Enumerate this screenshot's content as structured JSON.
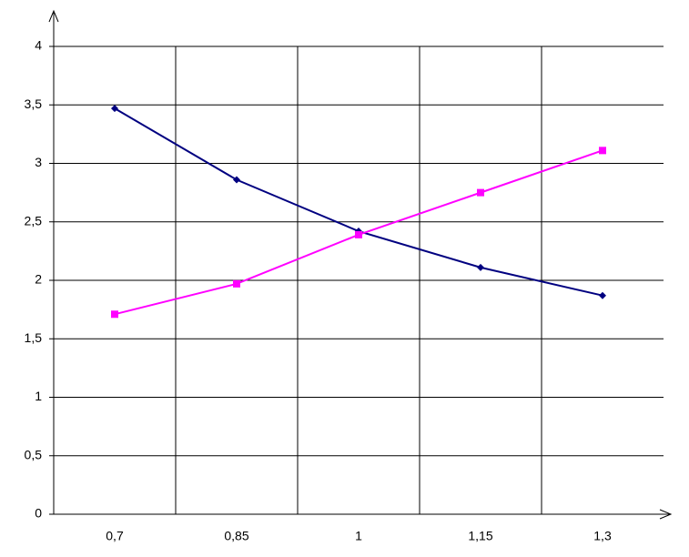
{
  "chart_data": {
    "type": "line",
    "categories": [
      "0,7",
      "0,85",
      "1",
      "1,15",
      "1,3"
    ],
    "series": [
      {
        "color": "#000080",
        "marker": "diamond",
        "values": [
          3.47,
          2.86,
          2.42,
          2.11,
          1.87
        ]
      },
      {
        "color": "#ff00ff",
        "marker": "square",
        "values": [
          1.71,
          1.97,
          2.39,
          2.75,
          3.11
        ]
      }
    ],
    "ylim": [
      0,
      4
    ],
    "yticks": [
      0,
      {
        "value": 0.5,
        "label": "0,5"
      },
      1,
      {
        "value": 1.5,
        "label": "1,5"
      },
      2,
      {
        "value": 2.5,
        "label": "2,5"
      },
      3,
      {
        "value": 3.5,
        "label": "3,5"
      },
      4
    ],
    "grid": true
  }
}
